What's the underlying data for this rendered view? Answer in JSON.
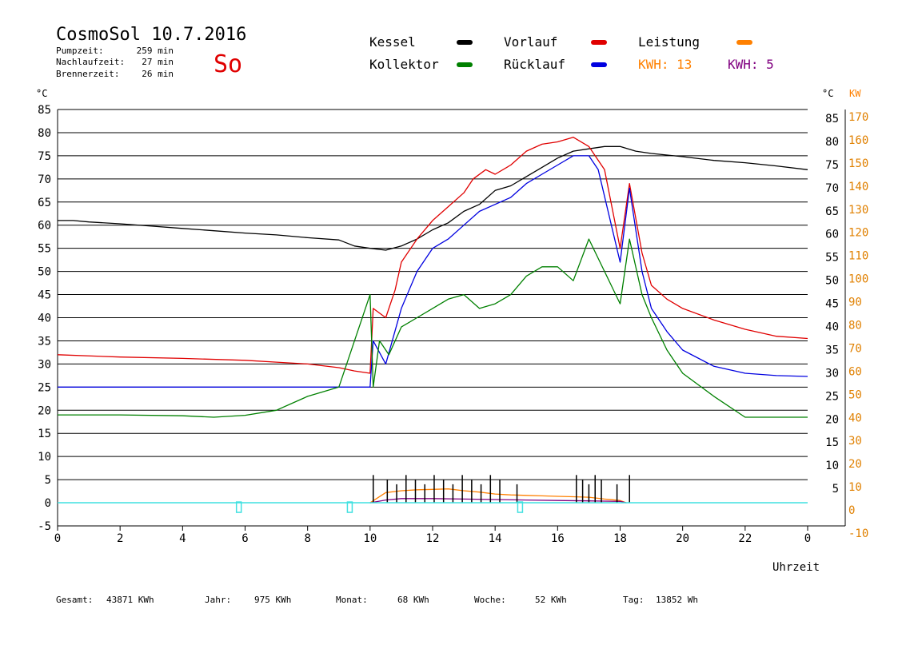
{
  "chart_data": {
    "type": "line",
    "title": "CosmoSol 10.7.2016",
    "day_marker": "So",
    "info": [
      {
        "label": "Pumpzeit:",
        "value": "259 min"
      },
      {
        "label": "Nachlaufzeit:",
        "value": "27 min"
      },
      {
        "label": "Brennerzeit:",
        "value": "26 min"
      }
    ],
    "legend": [
      {
        "name": "Kessel",
        "color": "#000000"
      },
      {
        "name": "Vorlauf",
        "color": "#e00000"
      },
      {
        "name": "Leistung",
        "color": "#ff8000"
      },
      {
        "name": "Kollektor",
        "color": "#008000"
      },
      {
        "name": "Rücklauf",
        "color": "#0000e0"
      }
    ],
    "kwh_labels": [
      {
        "text": "KWH: 13",
        "color": "#ff8000"
      },
      {
        "text": "KWH: 5",
        "color": "#800080"
      }
    ],
    "y_left_unit": "°C",
    "y_right_unit_c": "°C",
    "y_right_unit_kw": "KW",
    "y_left_ticks": [
      "85",
      "80",
      "75",
      "70",
      "65",
      "60",
      "55",
      "50",
      "45",
      "40",
      "35",
      "30",
      "25",
      "20",
      "15",
      "10",
      "5",
      "0",
      "-5"
    ],
    "y_right_ticks_c": [
      "85",
      "80",
      "75",
      "70",
      "65",
      "60",
      "55",
      "50",
      "45",
      "40",
      "35",
      "30",
      "25",
      "20",
      "15",
      "10",
      "5"
    ],
    "y_right_ticks_kw": [
      "170",
      "160",
      "150",
      "140",
      "130",
      "120",
      "110",
      "100",
      "90",
      "80",
      "70",
      "60",
      "50",
      "40",
      "30",
      "20",
      "10",
      "0",
      "-10"
    ],
    "x_ticks": [
      "0",
      "2",
      "4",
      "6",
      "8",
      "10",
      "12",
      "14",
      "16",
      "18",
      "20",
      "22",
      "0"
    ],
    "xlabel": "Uhrzeit",
    "xlim": [
      0,
      24
    ],
    "ylim": [
      -5,
      85
    ],
    "series": [
      {
        "name": "Kessel",
        "color": "#000000",
        "x": [
          0,
          0.5,
          1,
          2,
          3,
          4,
          5,
          6,
          7,
          8,
          9,
          9.5,
          10,
          10.5,
          11,
          11.5,
          12,
          12.5,
          13,
          13.5,
          14,
          14.5,
          15,
          15.5,
          16,
          16.5,
          17,
          17.5,
          18,
          18.5,
          19,
          20,
          21,
          22,
          23,
          24
        ],
        "y": [
          61,
          61,
          60.7,
          60.3,
          59.8,
          59.3,
          58.8,
          58.3,
          57.9,
          57.3,
          56.8,
          55.5,
          55,
          54.6,
          55.5,
          57,
          59,
          60.5,
          63,
          64.5,
          67.5,
          68.5,
          70.5,
          72.5,
          74.5,
          76,
          76.5,
          77,
          77,
          76,
          75.5,
          74.8,
          74,
          73.5,
          72.8,
          72
        ]
      },
      {
        "name": "Vorlauf",
        "color": "#e00000",
        "x": [
          0,
          2,
          4,
          6,
          7,
          8,
          9,
          9.5,
          10,
          10.1,
          10.5,
          10.8,
          11,
          11.5,
          12,
          12.5,
          13,
          13.3,
          13.7,
          14,
          14.5,
          15,
          15.5,
          16,
          16.5,
          17,
          17.5,
          18,
          18.3,
          18.7,
          19,
          19.5,
          20,
          21,
          22,
          23,
          24
        ],
        "y": [
          32,
          31.5,
          31.2,
          30.8,
          30.4,
          30,
          29.2,
          28.5,
          28,
          42,
          40,
          46,
          52,
          57,
          61,
          64,
          67,
          70,
          72,
          71,
          73,
          76,
          77.5,
          78,
          79,
          77,
          72,
          55,
          69,
          54,
          47,
          44,
          42,
          39.5,
          37.5,
          36,
          35.5
        ]
      },
      {
        "name": "Rücklauf",
        "color": "#0000e0",
        "x": [
          0,
          2,
          4,
          6,
          7,
          8,
          9,
          10,
          10.1,
          10.5,
          11,
          11.5,
          12,
          12.5,
          13,
          13.5,
          14,
          14.5,
          15,
          15.5,
          16,
          16.5,
          17,
          17.3,
          18,
          18.3,
          18.7,
          19,
          19.5,
          20,
          21,
          22,
          23,
          24
        ],
        "y": [
          25,
          25,
          25,
          25,
          25,
          25,
          25,
          25,
          35,
          30,
          42,
          50,
          55,
          57,
          60,
          63,
          64.5,
          66,
          69,
          71,
          73,
          75,
          75,
          72,
          52,
          68,
          50,
          42,
          37,
          33,
          29.5,
          28,
          27.5,
          27.3
        ]
      },
      {
        "name": "Kollektor",
        "color": "#008000",
        "x": [
          0,
          2,
          4,
          5,
          6,
          7,
          8,
          8.5,
          9,
          9.5,
          10,
          10.1,
          10.3,
          10.6,
          11,
          11.5,
          12,
          12.5,
          13,
          13.5,
          14,
          14.5,
          15,
          15.5,
          16,
          16.5,
          17,
          17.5,
          18,
          18.3,
          18.7,
          19,
          19.5,
          20,
          21,
          22,
          23,
          24
        ],
        "y": [
          19,
          19,
          18.8,
          18.5,
          18.9,
          20,
          23,
          24,
          25,
          35,
          45,
          25,
          35,
          32,
          38,
          40,
          42,
          44,
          45,
          42,
          43,
          45,
          49,
          51,
          51,
          48,
          57,
          50,
          43,
          57,
          45,
          40,
          33,
          28,
          23,
          18.5,
          18.5,
          18.5
        ]
      },
      {
        "name": "Leistung",
        "color": "#ff8000",
        "x": [
          10,
          10.5,
          11,
          11.5,
          12,
          12.5,
          13,
          13.5,
          14,
          14.5,
          15,
          15.5,
          16,
          16.5,
          17,
          17.5,
          18,
          18.2
        ],
        "y": [
          0,
          2.2,
          2.6,
          2.8,
          2.9,
          3.0,
          2.6,
          2.3,
          1.9,
          1.7,
          1.6,
          1.5,
          1.4,
          1.3,
          1.2,
          0.8,
          0.5,
          0
        ]
      },
      {
        "name": "KWH 5",
        "color": "#800080",
        "x": [
          10,
          10.5,
          11,
          12,
          13,
          14,
          15,
          16,
          17,
          18,
          18.2
        ],
        "y": [
          0,
          0.6,
          0.9,
          0.9,
          0.8,
          0.7,
          0.6,
          0.5,
          0.4,
          0.3,
          0
        ]
      }
    ],
    "burner_spikes_x": [
      10.1,
      10.55,
      10.85,
      11.15,
      11.45,
      11.75,
      12.05,
      12.35,
      12.65,
      12.95,
      13.25,
      13.55,
      13.85,
      14.15,
      14.7,
      16.6,
      16.8,
      17.0,
      17.2,
      17.4,
      17.9,
      18.3
    ],
    "pump_markers_x": [
      5.8,
      9.35,
      14.8
    ],
    "pump_line_color": "#40e0e0",
    "grid": true
  },
  "totals": [
    {
      "label": "Gesamt:",
      "value": "43871 KWh"
    },
    {
      "label": "Jahr:",
      "value": "975 KWh"
    },
    {
      "label": "Monat:",
      "value": "68 KWh"
    },
    {
      "label": "Woche:",
      "value": "52 KWh"
    },
    {
      "label": "Tag:",
      "value": "13852 Wh"
    }
  ]
}
